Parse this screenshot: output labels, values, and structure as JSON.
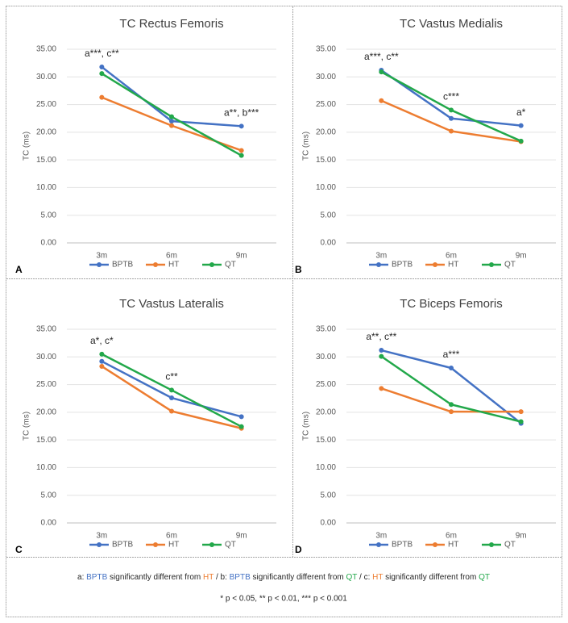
{
  "chart_data": [
    {
      "type": "line",
      "title": "TC Rectus Femoris",
      "panel_label": "A",
      "ylabel": "TC (ms)",
      "categories": [
        "3m",
        "6m",
        "9m"
      ],
      "series": [
        {
          "name": "BPTB",
          "color": "#4472c4",
          "values": [
            31.8,
            22.0,
            21.1
          ]
        },
        {
          "name": "HT",
          "color": "#ed7d31",
          "values": [
            26.3,
            21.2,
            16.7
          ]
        },
        {
          "name": "QT",
          "color": "#22a84a",
          "values": [
            30.6,
            22.8,
            15.8
          ]
        }
      ],
      "annotations": [
        {
          "text": "a***, c**",
          "category": 0
        },
        {
          "text": "a**, b***",
          "category": 2
        }
      ],
      "ylim": [
        0,
        35
      ],
      "yticks": [
        {
          "value": 0,
          "label": "0.00"
        },
        {
          "value": 5,
          "label": "5.00"
        },
        {
          "value": 10,
          "label": "10.00"
        },
        {
          "value": 15,
          "label": "15.00"
        },
        {
          "value": 20,
          "label": "20.00"
        },
        {
          "value": 25,
          "label": "25.00"
        },
        {
          "value": 30,
          "label": "30.00"
        },
        {
          "value": 35,
          "label": "35.00"
        }
      ],
      "grid": true
    },
    {
      "type": "line",
      "title": "TC Vastus Medialis",
      "panel_label": "B",
      "ylabel": "TC (ms)",
      "categories": [
        "3m",
        "6m",
        "9m"
      ],
      "series": [
        {
          "name": "BPTB",
          "color": "#4472c4",
          "values": [
            31.2,
            22.5,
            21.2
          ]
        },
        {
          "name": "HT",
          "color": "#ed7d31",
          "values": [
            25.7,
            20.2,
            18.3
          ]
        },
        {
          "name": "QT",
          "color": "#22a84a",
          "values": [
            30.9,
            24.0,
            18.4
          ]
        }
      ],
      "annotations": [
        {
          "text": "a***, c**",
          "category": 0
        },
        {
          "text": "c***",
          "category": 1
        },
        {
          "text": "a*",
          "category": 2
        }
      ],
      "ylim": [
        0,
        35
      ],
      "yticks": [
        {
          "value": 0,
          "label": "0.00"
        },
        {
          "value": 5,
          "label": "5.00"
        },
        {
          "value": 10,
          "label": "10.00"
        },
        {
          "value": 15,
          "label": "15.00"
        },
        {
          "value": 20,
          "label": "20.00"
        },
        {
          "value": 25,
          "label": "25.00"
        },
        {
          "value": 30,
          "label": "30.00"
        },
        {
          "value": 35,
          "label": "35.00"
        }
      ],
      "grid": true
    },
    {
      "type": "line",
      "title": "TC Vastus Lateralis",
      "panel_label": "C",
      "ylabel": "TC (ms)",
      "categories": [
        "3m",
        "6m",
        "9m"
      ],
      "series": [
        {
          "name": "BPTB",
          "color": "#4472c4",
          "values": [
            29.2,
            22.6,
            19.2
          ]
        },
        {
          "name": "HT",
          "color": "#ed7d31",
          "values": [
            28.3,
            20.2,
            17.1
          ]
        },
        {
          "name": "QT",
          "color": "#22a84a",
          "values": [
            30.5,
            24.0,
            17.4
          ]
        }
      ],
      "annotations": [
        {
          "text": "a*, c*",
          "category": 0
        },
        {
          "text": "c**",
          "category": 1
        }
      ],
      "ylim": [
        0,
        35
      ],
      "yticks": [
        {
          "value": 0,
          "label": "0.00"
        },
        {
          "value": 5,
          "label": "5.00"
        },
        {
          "value": 10,
          "label": "10.00"
        },
        {
          "value": 15,
          "label": "15.00"
        },
        {
          "value": 20,
          "label": "20.00"
        },
        {
          "value": 25,
          "label": "25.00"
        },
        {
          "value": 30,
          "label": "30.00"
        },
        {
          "value": 35,
          "label": "35.00"
        }
      ],
      "grid": true
    },
    {
      "type": "line",
      "title": "TC Biceps Femoris",
      "panel_label": "D",
      "ylabel": "TC (ms)",
      "categories": [
        "3m",
        "6m",
        "9m"
      ],
      "series": [
        {
          "name": "BPTB",
          "color": "#4472c4",
          "values": [
            31.2,
            28.0,
            18.0
          ]
        },
        {
          "name": "HT",
          "color": "#ed7d31",
          "values": [
            24.3,
            20.1,
            20.1
          ]
        },
        {
          "name": "QT",
          "color": "#22a84a",
          "values": [
            30.1,
            21.4,
            18.3
          ]
        }
      ],
      "annotations": [
        {
          "text": "a**, c**",
          "category": 0
        },
        {
          "text": "a***",
          "category": 1
        }
      ],
      "ylim": [
        0,
        35
      ],
      "yticks": [
        {
          "value": 0,
          "label": "0.00"
        },
        {
          "value": 5,
          "label": "5.00"
        },
        {
          "value": 10,
          "label": "10.00"
        },
        {
          "value": 15,
          "label": "15.00"
        },
        {
          "value": 20,
          "label": "20.00"
        },
        {
          "value": 25,
          "label": "25.00"
        },
        {
          "value": 30,
          "label": "30.00"
        },
        {
          "value": 35,
          "label": "35.00"
        }
      ],
      "grid": true
    }
  ],
  "footnote": {
    "legend_parts": [
      {
        "text": "a: "
      },
      {
        "text": "BPTB",
        "color": "#4472c4"
      },
      {
        "text": " significantly different from "
      },
      {
        "text": "HT",
        "color": "#ed7d31"
      },
      {
        "text": " / b: "
      },
      {
        "text": "BPTB",
        "color": "#4472c4"
      },
      {
        "text": " significantly different from "
      },
      {
        "text": "QT",
        "color": "#22a84a"
      },
      {
        "text": " / c: "
      },
      {
        "text": "HT",
        "color": "#ed7d31"
      },
      {
        "text": " significantly different from "
      },
      {
        "text": "QT",
        "color": "#22a84a"
      }
    ],
    "significance": "* p < 0.05, ** p < 0.01, *** p < 0.001"
  }
}
